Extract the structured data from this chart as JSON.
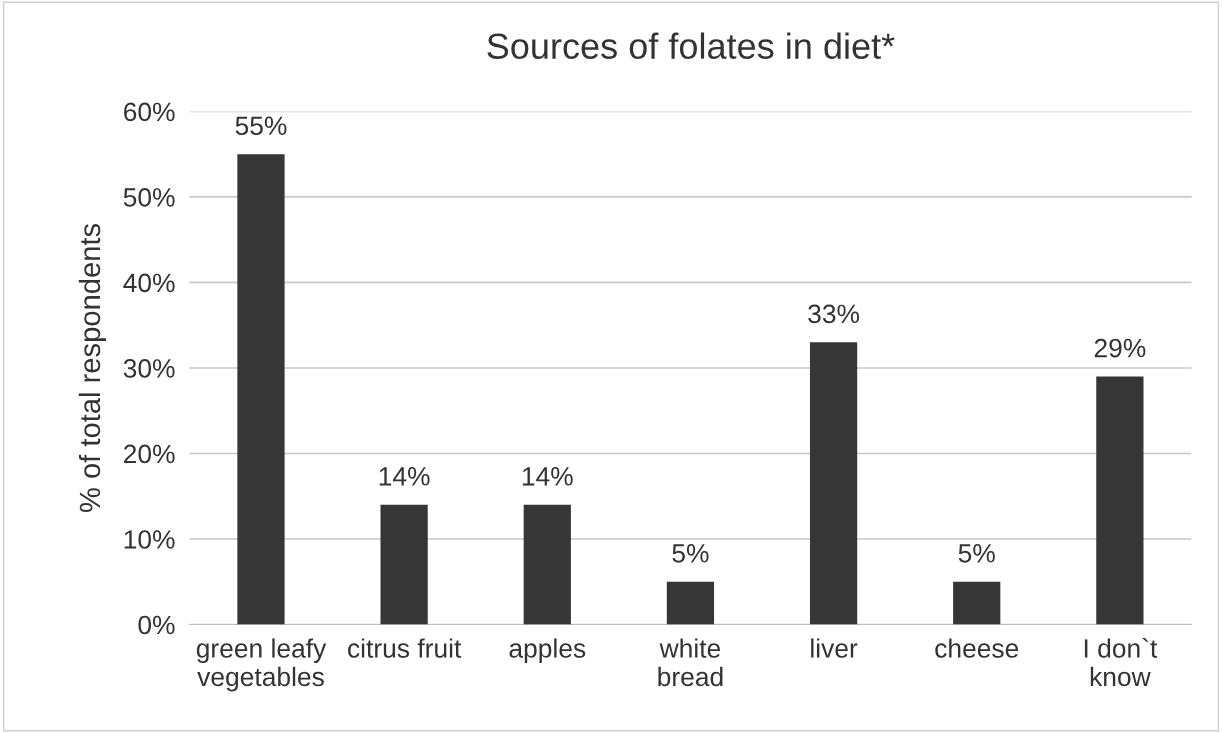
{
  "chart_data": {
    "type": "bar",
    "title": "Sources of folates in diet*",
    "ylabel": "% of total respondents",
    "categories": [
      "green leafy\nvegetables",
      "citrus fruit",
      "apples",
      "white\nbread",
      "liver",
      "cheese",
      "I don`t\nknow"
    ],
    "values": [
      55,
      14,
      14,
      5,
      33,
      5,
      29
    ],
    "value_labels": [
      "55%",
      "14%",
      "14%",
      "5%",
      "33%",
      "5%",
      "29%"
    ],
    "color": "#363636",
    "ylim": [
      0,
      60
    ],
    "yticks": [
      {
        "value": 0,
        "label": "0%"
      },
      {
        "value": 10,
        "label": "10%"
      },
      {
        "value": 20,
        "label": "20%"
      },
      {
        "value": 30,
        "label": "30%"
      },
      {
        "value": 40,
        "label": "40%"
      },
      {
        "value": 50,
        "label": "50%"
      },
      {
        "value": 60,
        "label": "60%"
      }
    ],
    "grid": "y",
    "legend": false
  }
}
